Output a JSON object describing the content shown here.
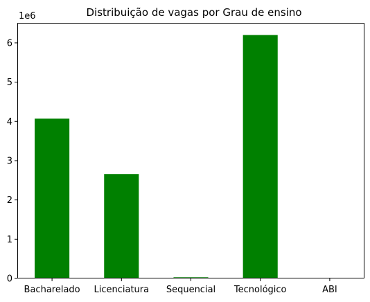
{
  "chart_data": {
    "type": "bar",
    "title": "Distribuição de vagas por Grau de ensino",
    "xlabel": "",
    "ylabel": "",
    "offset_text": "1e6",
    "categories": [
      "Bacharelado",
      "Licenciatura",
      "Sequencial",
      "Tecnológico",
      "ABI"
    ],
    "values": [
      4070000,
      2660000,
      30000,
      6200000,
      3000
    ],
    "y_scale": 1000000,
    "ylim": [
      0,
      6510000
    ],
    "yticks": [
      0,
      1,
      2,
      3,
      4,
      5,
      6
    ],
    "bar_color": "#008000",
    "grid": false,
    "legend": false
  }
}
